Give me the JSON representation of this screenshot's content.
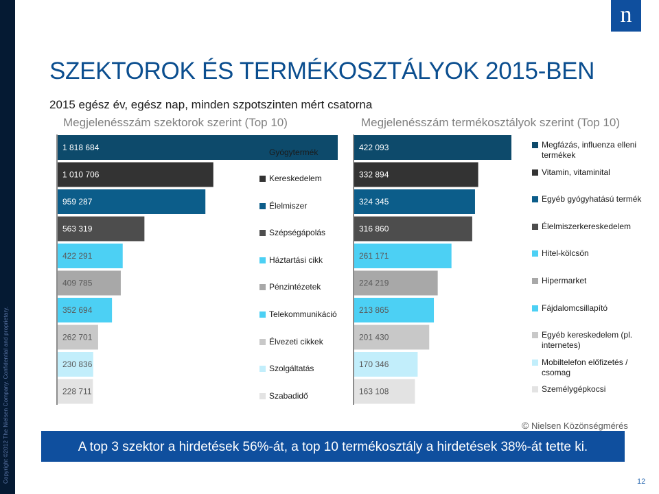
{
  "title": "SZEKTOROK ÉS TERMÉKOSZTÁLYOK 2015-BEN",
  "subtitle": "2015 egész év, egész nap, minden szpotszinten mért csatorna",
  "copyright_side": "Copyright ©2012 The Nielsen Company. Confidential and proprietary.",
  "logo_letter": "n",
  "source": {
    "symbol": "©",
    "text": "Nielsen Közönségmérés"
  },
  "banner": "A top 3 szektor a hirdetések 56%-át, a top 10 termékosztály a hirdetések 38%-át tette ki.",
  "slide_number": "12",
  "colors": [
    "#0d4a6b",
    "#333333",
    "#0c5d8a",
    "#4d4d4d",
    "#4cd0f4",
    "#a8a8a8",
    "#4cd0f4",
    "#c8c8c8",
    "#c2eefb",
    "#e3e3e3"
  ],
  "chart_data": [
    {
      "type": "bar",
      "orientation": "horizontal",
      "title": "Megjelenésszám szektorok szerint (Top 10)",
      "categories": [
        "Gyógytermék",
        "Kereskedelem",
        "Élelmiszer",
        "Szépségápolás",
        "Háztartási cikk",
        "Pénzintézetek",
        "Telekommunikáció",
        "Élvezeti cikkek",
        "Szolgáltatás",
        "Szabadidő"
      ],
      "values": [
        1818684,
        1010706,
        959287,
        563319,
        422291,
        409785,
        352694,
        262701,
        230836,
        228711
      ],
      "labels": [
        "1 818 684",
        "1 010 706",
        "959 287",
        "563 319",
        "422 291",
        "409 785",
        "352 694",
        "262 701",
        "230 836",
        "228 711"
      ],
      "xlim": [
        0,
        1818684
      ],
      "legend": "right"
    },
    {
      "type": "bar",
      "orientation": "horizontal",
      "title": "Megjelenésszám termékosztályok szerint (Top 10)",
      "categories": [
        "Megfázás, influenza elleni termékek",
        "Vitamin, vitaminital",
        "Egyéb gyógyhatású termék",
        "Élelmiszerkereskedelem",
        "Hitel-kölcsön",
        "Hipermarket",
        "Fájdalomcsillapító",
        "Egyéb kereskedelem (pl. internetes)",
        "Mobiltelefon előfizetés / csomag",
        "Személygépkocsi"
      ],
      "values": [
        422093,
        332894,
        324345,
        316860,
        261171,
        224219,
        213865,
        201430,
        170346,
        163108
      ],
      "labels": [
        "422 093",
        "332 894",
        "324 345",
        "316 860",
        "261 171",
        "224 219",
        "213 865",
        "201 430",
        "170 346",
        "163 108"
      ],
      "xlim": [
        0,
        422093
      ],
      "legend": "right"
    }
  ]
}
